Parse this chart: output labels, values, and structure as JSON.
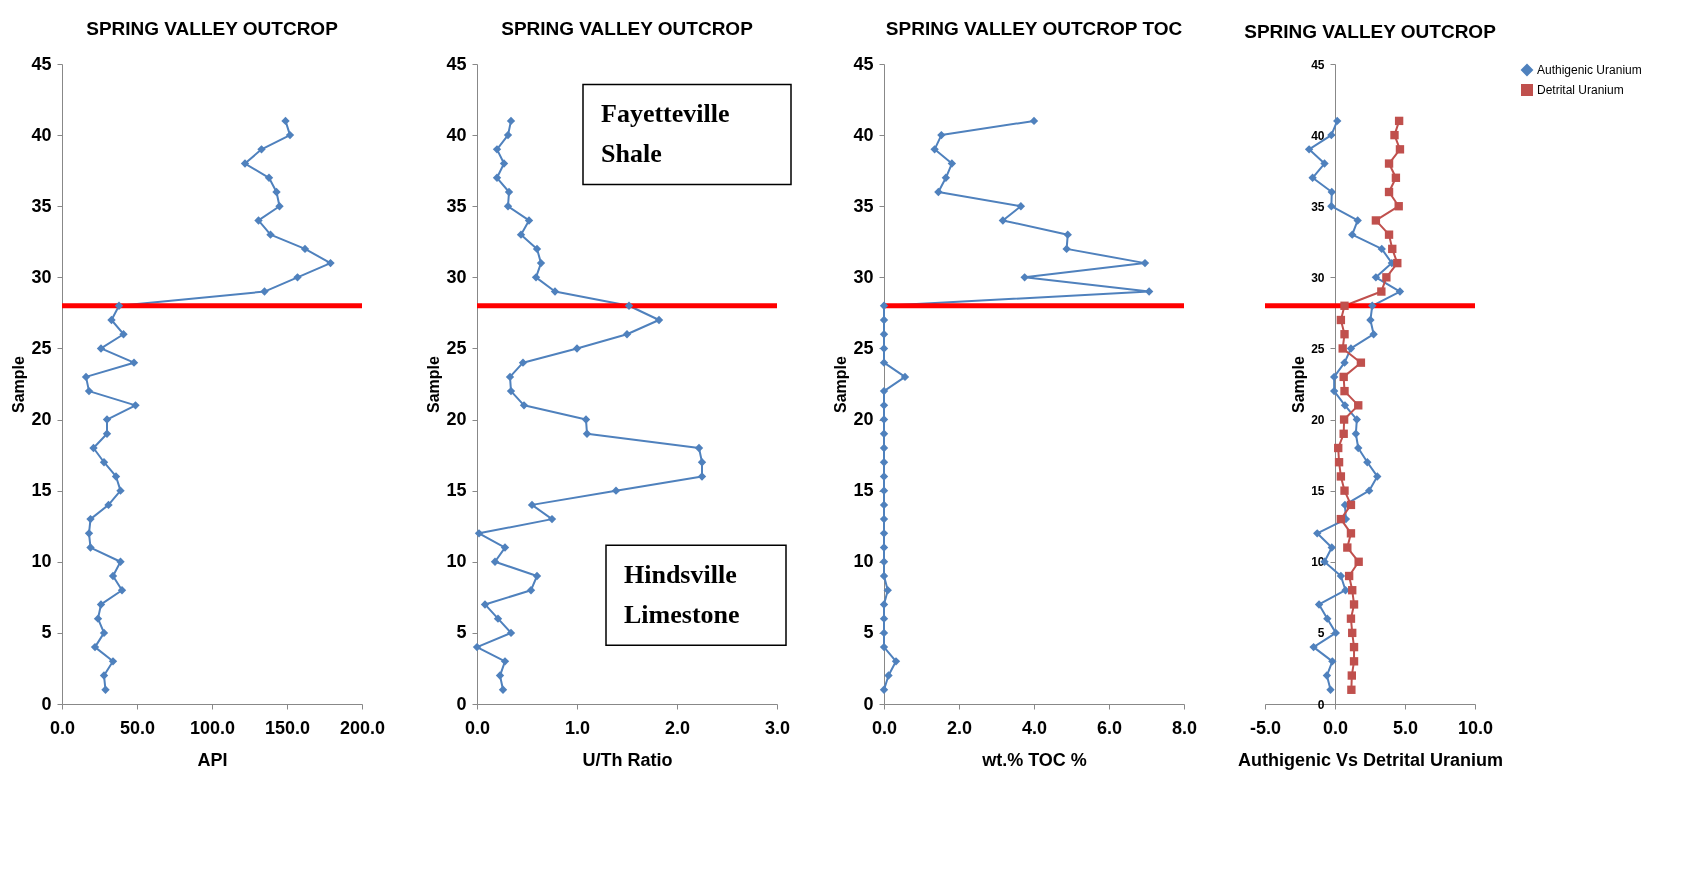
{
  "chart_data": [
    {
      "type": "line",
      "orientation": "horizontal",
      "title": "SPRING VALLEY OUTCROP",
      "xlabel": "API",
      "ylabel": "Sample",
      "x": [
        1,
        2,
        3,
        4,
        5,
        6,
        7,
        8,
        9,
        10,
        11,
        12,
        13,
        14,
        15,
        16,
        17,
        18,
        19,
        20,
        21,
        22,
        23,
        24,
        25,
        26,
        27,
        28,
        29,
        30,
        31,
        32,
        33,
        34,
        35,
        36,
        37,
        38,
        39,
        40,
        41
      ],
      "series": [
        {
          "color": "#4f81bd",
          "marker": "diamond",
          "values": [
            29,
            28,
            34,
            22,
            28,
            24,
            26,
            40,
            34,
            39,
            19,
            18,
            19,
            31,
            39,
            36,
            28,
            21,
            30,
            30,
            49,
            18,
            16,
            48,
            26,
            41,
            33,
            38,
            135,
            157,
            179,
            162,
            139,
            131,
            145,
            143,
            138,
            122,
            133,
            152,
            149
          ]
        }
      ],
      "xlim": [
        0,
        200
      ],
      "xticks": [
        {
          "value": 0,
          "label": "0.0"
        },
        {
          "value": 50,
          "label": "50.0"
        },
        {
          "value": 100,
          "label": "100.0"
        },
        {
          "value": 150,
          "label": "150.0"
        },
        {
          "value": 200,
          "label": "200.0"
        }
      ],
      "ylim": [
        0,
        45
      ],
      "yticks": [
        0,
        5,
        10,
        15,
        20,
        25,
        30,
        35,
        40,
        45
      ],
      "grid": false,
      "legend": false,
      "ref_lines": [
        {
          "axis": "y",
          "value": 28,
          "color": "#ff0000"
        }
      ]
    },
    {
      "type": "line",
      "orientation": "horizontal",
      "title": "SPRING VALLEY OUTCROP",
      "xlabel": "U/Th Ratio",
      "ylabel": "Sample",
      "x": [
        1,
        2,
        3,
        4,
        5,
        6,
        7,
        8,
        9,
        10,
        11,
        12,
        13,
        14,
        15,
        16,
        17,
        18,
        19,
        20,
        21,
        22,
        23,
        24,
        25,
        26,
        27,
        28,
        29,
        30,
        31,
        32,
        33,
        34,
        35,
        36,
        37,
        38,
        39,
        40,
        41
      ],
      "series": [
        {
          "color": "#4f81bd",
          "marker": "diamond",
          "values": [
            0.26,
            0.23,
            0.28,
            0.0,
            0.34,
            0.21,
            0.08,
            0.54,
            0.6,
            0.18,
            0.28,
            0.02,
            0.75,
            0.55,
            1.39,
            2.25,
            2.25,
            2.22,
            1.1,
            1.09,
            0.47,
            0.34,
            0.33,
            0.46,
            1.0,
            1.5,
            1.82,
            1.52,
            0.78,
            0.59,
            0.64,
            0.6,
            0.44,
            0.52,
            0.31,
            0.32,
            0.2,
            0.27,
            0.2,
            0.31,
            0.34
          ]
        }
      ],
      "xlim": [
        0,
        3
      ],
      "xticks": [
        {
          "value": 0,
          "label": "0.0"
        },
        {
          "value": 1,
          "label": "1.0"
        },
        {
          "value": 2,
          "label": "2.0"
        },
        {
          "value": 3,
          "label": "3.0"
        }
      ],
      "ylim": [
        0,
        45
      ],
      "yticks": [
        0,
        5,
        10,
        15,
        20,
        25,
        30,
        35,
        40,
        45
      ],
      "grid": false,
      "legend": false,
      "ref_lines": [
        {
          "axis": "y",
          "value": 28,
          "color": "#ff0000"
        }
      ],
      "annotations": [
        "Fayetteville Shale",
        "Hindsville Limestone"
      ]
    },
    {
      "type": "line",
      "orientation": "horizontal",
      "title": "SPRING VALLEY OUTCROP TOC",
      "xlabel": "wt.% TOC %",
      "ylabel": "Sample",
      "x": [
        1,
        2,
        3,
        4,
        5,
        6,
        7,
        8,
        9,
        10,
        11,
        12,
        13,
        14,
        15,
        16,
        17,
        18,
        19,
        20,
        21,
        22,
        23,
        24,
        25,
        26,
        27,
        28,
        29,
        30,
        31,
        32,
        33,
        34,
        35,
        36,
        37,
        38,
        39,
        40,
        41
      ],
      "series": [
        {
          "color": "#4f81bd",
          "marker": "diamond",
          "values": [
            0,
            0.12,
            0.32,
            0,
            0,
            0,
            0,
            0.1,
            0,
            0,
            0,
            0,
            0,
            0,
            0,
            0,
            0,
            0,
            0,
            0,
            0,
            0,
            0.56,
            0,
            0,
            0,
            0,
            0,
            7.07,
            3.75,
            6.96,
            4.87,
            4.9,
            3.17,
            3.65,
            1.45,
            1.65,
            1.81,
            1.35,
            1.53,
            4.0
          ]
        }
      ],
      "xlim": [
        0,
        8
      ],
      "xticks": [
        {
          "value": 0,
          "label": "0.0"
        },
        {
          "value": 2,
          "label": "2.0"
        },
        {
          "value": 4,
          "label": "4.0"
        },
        {
          "value": 6,
          "label": "6.0"
        },
        {
          "value": 8,
          "label": "8.0"
        }
      ],
      "ylim": [
        0,
        45
      ],
      "yticks": [
        0,
        5,
        10,
        15,
        20,
        25,
        30,
        35,
        40,
        45
      ],
      "grid": false,
      "legend": false,
      "ref_lines": [
        {
          "axis": "y",
          "value": 28,
          "color": "#ff0000"
        }
      ]
    },
    {
      "type": "line",
      "orientation": "horizontal",
      "title": "SPRING VALLEY OUTCROP",
      "xlabel": "Authigenic Vs Detrital Uranium",
      "ylabel": "Sample",
      "x": [
        1,
        2,
        3,
        4,
        5,
        6,
        7,
        8,
        9,
        10,
        11,
        12,
        13,
        14,
        15,
        16,
        17,
        18,
        19,
        20,
        21,
        22,
        23,
        24,
        25,
        26,
        27,
        28,
        29,
        30,
        31,
        32,
        33,
        34,
        35,
        36,
        37,
        38,
        39,
        40,
        41
      ],
      "series": [
        {
          "name": "Authigenic Uranium",
          "color": "#4f81bd",
          "marker": "diamond",
          "values": [
            -0.32,
            -0.58,
            -0.19,
            -1.53,
            0.06,
            -0.55,
            -1.14,
            0.75,
            0.42,
            -0.75,
            -0.23,
            -1.27,
            0.78,
            0.71,
            2.44,
            3.02,
            2.31,
            1.66,
            1.49,
            1.56,
            0.71,
            -0.06,
            -0.06,
            0.68,
            1.14,
            2.76,
            2.53,
            2.66,
            4.64,
            2.92,
            4.06,
            3.34,
            1.23,
            1.62,
            -0.26,
            -0.23,
            -1.6,
            -0.75,
            -1.85,
            -0.26,
            0.16
          ]
        },
        {
          "name": "Detrital Uranium",
          "color": "#c0504d",
          "marker": "square",
          "values": [
            1.17,
            1.2,
            1.36,
            1.36,
            1.23,
            1.14,
            1.36,
            1.23,
            1.01,
            1.69,
            0.88,
            1.14,
            0.42,
            1.14,
            0.68,
            0.42,
            0.29,
            0.23,
            0.62,
            0.65,
            1.66,
            0.68,
            0.62,
            1.85,
            0.55,
            0.68,
            0.42,
            0.68,
            3.31,
            3.67,
            4.45,
            4.09,
            3.86,
            2.92,
            4.55,
            3.86,
            4.35,
            3.86,
            4.64,
            4.25,
            4.58
          ]
        }
      ],
      "xlim": [
        -5,
        10
      ],
      "xticks": [
        {
          "value": -5,
          "label": "-5.0"
        },
        {
          "value": 0,
          "label": "0.0"
        },
        {
          "value": 5,
          "label": "5.0"
        },
        {
          "value": 10,
          "label": "10.0"
        }
      ],
      "ylim": [
        0,
        45
      ],
      "yticks": [
        0,
        5,
        10,
        15,
        20,
        25,
        30,
        35,
        40,
        45
      ],
      "grid": false,
      "legend": "right",
      "ref_lines": [
        {
          "axis": "y",
          "value": 28,
          "color": "#ff0000"
        }
      ]
    }
  ]
}
